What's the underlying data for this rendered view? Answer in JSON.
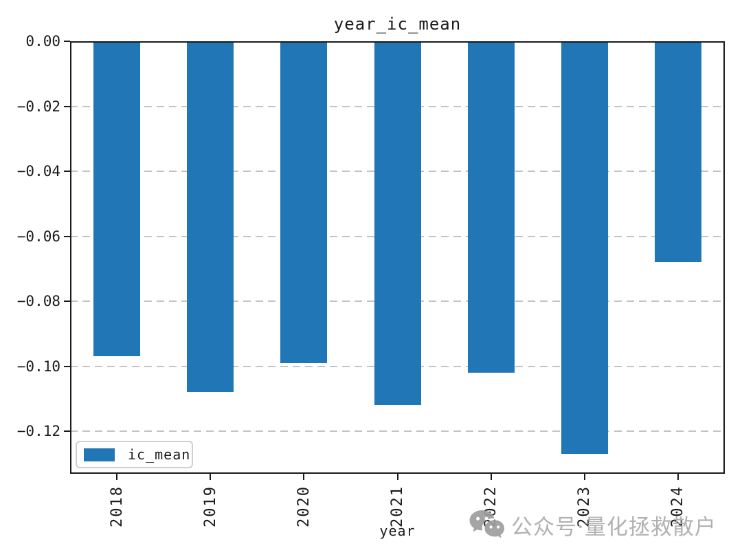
{
  "chart_data": {
    "type": "bar",
    "title": "year_ic_mean",
    "xlabel": "year",
    "ylabel": "",
    "categories": [
      "2018",
      "2019",
      "2020",
      "2021",
      "2022",
      "2023",
      "2024"
    ],
    "series": [
      {
        "name": "ic_mean",
        "values": [
          -0.097,
          -0.108,
          -0.099,
          -0.112,
          -0.102,
          -0.127,
          -0.068
        ]
      }
    ],
    "ylim": [
      -0.1331,
      0
    ],
    "yticks": [
      0.0,
      -0.02,
      -0.04,
      -0.06,
      -0.08,
      -0.1,
      -0.12
    ],
    "ytick_labels": [
      "0.00",
      "−0.02",
      "−0.04",
      "−0.06",
      "−0.08",
      "−0.10",
      "−0.12"
    ],
    "grid": "horizontal dashed gridlines at each y tick",
    "legend": {
      "position": "lower left",
      "entries": [
        "ic_mean"
      ]
    },
    "bar_color": "#2176b5"
  },
  "title": "year_ic_mean",
  "x_axis_label": "year",
  "legend_label": "ic_mean",
  "watermark": {
    "icon": "wechat-icon",
    "text": "公众号·量化拯救散户"
  },
  "colors": {
    "bar": "#2176b5",
    "grid": "#c3c3c3",
    "spine": "#1a1a1a",
    "watermark_gray": "#ababab"
  }
}
